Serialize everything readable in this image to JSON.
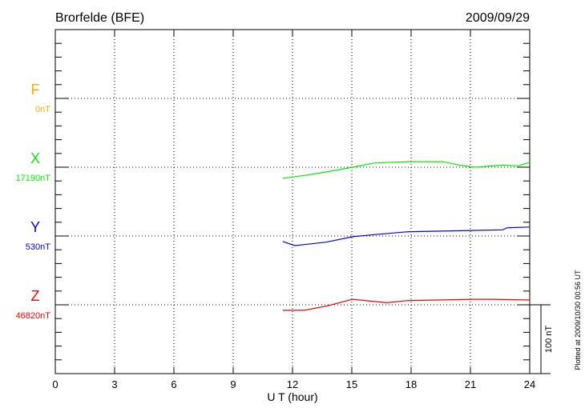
{
  "chart_data": {
    "type": "line",
    "title": "Brorfelde (BFE)",
    "date": "2009/09/29",
    "xlabel": "U T (hour)",
    "xlim": [
      0,
      24
    ],
    "xticks": [
      0,
      3,
      6,
      9,
      12,
      15,
      18,
      21,
      24
    ],
    "grid": true,
    "scale_bar_label": "100 nT",
    "footer": "Plotted at 2009/10/30 00:56 UT",
    "series": [
      {
        "name": "F",
        "baseline_label": "0nT",
        "color": "#ffaa00",
        "x": [],
        "y": []
      },
      {
        "name": "X",
        "baseline_label": "17190nT",
        "color": "#00ee00",
        "x": [
          11.51,
          12.6,
          13.7,
          15.04,
          16.13,
          17.88,
          19.62,
          20.43,
          21.24,
          22.62,
          23.43,
          24.0
        ],
        "y": [
          -16,
          -12,
          -7,
          0,
          6,
          8,
          8,
          3,
          0,
          3,
          2,
          7
        ]
      },
      {
        "name": "Y",
        "baseline_label": "530nT",
        "color": "#0000ee",
        "x": [
          11.51,
          12.12,
          13.7,
          15.04,
          16.13,
          17.76,
          21.0,
          22.62,
          22.86,
          24.0
        ],
        "y": [
          -8,
          -14,
          -9,
          -1,
          2,
          6,
          8,
          9,
          12,
          13
        ]
      },
      {
        "name": "Z",
        "baseline_label": "46820nT",
        "color": "#ee0000",
        "x": [
          11.51,
          12.6,
          13.7,
          15.04,
          16.78,
          17.76,
          21.12,
          22.05,
          24.0
        ],
        "y": [
          -8,
          -8,
          -2,
          8,
          3,
          6,
          8,
          8,
          7
        ]
      }
    ]
  }
}
